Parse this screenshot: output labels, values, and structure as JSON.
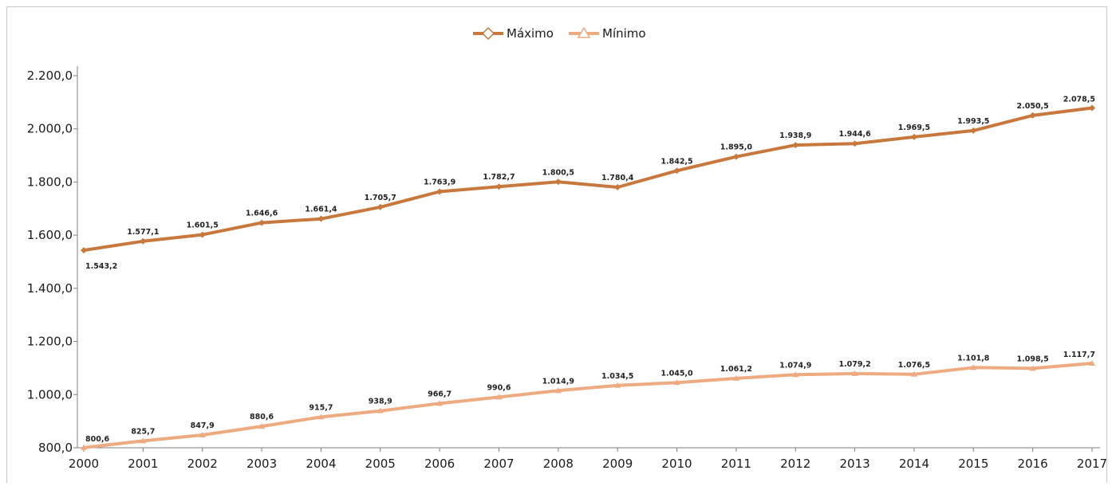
{
  "chart_data": {
    "type": "line",
    "x": [
      "2000",
      "2001",
      "2002",
      "2003",
      "2004",
      "2005",
      "2006",
      "2007",
      "2008",
      "2009",
      "2010",
      "2011",
      "2012",
      "2013",
      "2014",
      "2015",
      "2016",
      "2017"
    ],
    "series": [
      {
        "name": "Máximo",
        "color": "#c8773d",
        "marker": "diamond",
        "values": [
          1543.2,
          1577.1,
          1601.5,
          1646.6,
          1661.4,
          1705.7,
          1763.9,
          1782.7,
          1800.5,
          1780.4,
          1842.5,
          1895.0,
          1938.9,
          1944.6,
          1969.5,
          1993.5,
          2050.5,
          2078.5
        ],
        "labels": [
          "1.543,2",
          "1.577,1",
          "1.601,5",
          "1.646,6",
          "1.661,4",
          "1.705,7",
          "1.763,9",
          "1.782,7",
          "1.800,5",
          "1.780,4",
          "1.842,5",
          "1.895,0",
          "1.938,9",
          "1.944,6",
          "1.969,5",
          "1.993,5",
          "2.050,5",
          "2.078,5"
        ]
      },
      {
        "name": "Mínimo",
        "color": "#eeaa80",
        "marker": "triangle",
        "values": [
          800.6,
          825.7,
          847.9,
          880.6,
          915.7,
          938.9,
          966.7,
          990.6,
          1014.9,
          1034.5,
          1045.0,
          1061.2,
          1074.9,
          1079.2,
          1076.5,
          1101.8,
          1098.5,
          1117.7
        ],
        "labels": [
          "800,6",
          "825,7",
          "847,9",
          "880,6",
          "915,7",
          "938,9",
          "966,7",
          "990,6",
          "1.014,9",
          "1.034,5",
          "1.045,0",
          "1.061,2",
          "1.074,9",
          "1.079,2",
          "1.076,5",
          "1.101,8",
          "1.098,5",
          "1.117,7"
        ]
      }
    ],
    "ylim": [
      800,
      2200
    ],
    "yticks": [
      800,
      1000,
      1200,
      1400,
      1600,
      1800,
      2000,
      2200
    ],
    "ytick_labels": [
      "800,0",
      "1.000,0",
      "1.200,0",
      "1.400,0",
      "1.600,0",
      "1.800,0",
      "2.000,0",
      "2.200,0"
    ],
    "grid": false,
    "legend_position": "top-center"
  }
}
